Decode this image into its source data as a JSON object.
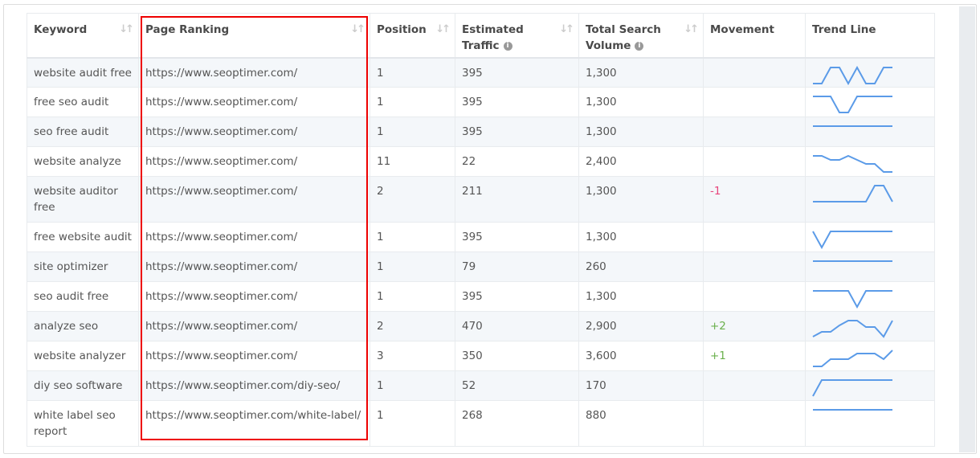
{
  "headers": {
    "keyword": "Keyword",
    "page_ranking": "Page Ranking",
    "position": "Position",
    "traffic": "Estimated Traffic",
    "volume": "Total Search Volume",
    "movement": "Movement",
    "trend": "Trend Line"
  },
  "colors": {
    "trend_line": "#5b9be8",
    "negative": "#e8457c",
    "positive": "#6ab04c",
    "highlight_box": "#e00000"
  },
  "rows": [
    {
      "keyword": "website audit free",
      "url": "https://www.seoptimer.com/",
      "position": "1",
      "traffic": "395",
      "volume": "1,300",
      "movement": "",
      "trend": [
        0,
        0,
        1,
        1,
        0,
        1,
        0,
        0,
        1,
        1
      ]
    },
    {
      "keyword": "free seo audit",
      "url": "https://www.seoptimer.com/",
      "position": "1",
      "traffic": "395",
      "volume": "1,300",
      "movement": "",
      "trend": [
        1,
        1,
        1,
        0,
        0,
        1,
        1,
        1,
        1,
        1
      ]
    },
    {
      "keyword": "seo free audit",
      "url": "https://www.seoptimer.com/",
      "position": "1",
      "traffic": "395",
      "volume": "1,300",
      "movement": "",
      "trend": [
        1,
        1,
        1,
        1,
        1,
        1,
        1,
        1,
        1,
        1
      ]
    },
    {
      "keyword": "website analyze",
      "url": "https://www.seoptimer.com/",
      "position": "11",
      "traffic": "22",
      "volume": "2,400",
      "movement": "",
      "trend": [
        1,
        1,
        0.75,
        0.75,
        1,
        0.75,
        0.5,
        0.5,
        0,
        0
      ]
    },
    {
      "keyword": "website auditor free",
      "url": "https://www.seoptimer.com/",
      "position": "2",
      "traffic": "211",
      "volume": "1,300",
      "movement": "-1",
      "trend": [
        0,
        0,
        0,
        0,
        0,
        0,
        0,
        1,
        1,
        0
      ]
    },
    {
      "keyword": "free website audit",
      "url": "https://www.seoptimer.com/",
      "position": "1",
      "traffic": "395",
      "volume": "1,300",
      "movement": "",
      "trend": [
        1,
        0,
        1,
        1,
        1,
        1,
        1,
        1,
        1,
        1
      ]
    },
    {
      "keyword": "site optimizer",
      "url": "https://www.seoptimer.com/",
      "position": "1",
      "traffic": "79",
      "volume": "260",
      "movement": "",
      "trend": [
        1,
        1,
        1,
        1,
        1,
        1,
        1,
        1,
        1,
        1
      ]
    },
    {
      "keyword": "seo audit free",
      "url": "https://www.seoptimer.com/",
      "position": "1",
      "traffic": "395",
      "volume": "1,300",
      "movement": "",
      "trend": [
        1,
        1,
        1,
        1,
        1,
        0,
        1,
        1,
        1,
        1
      ]
    },
    {
      "keyword": "analyze seo",
      "url": "https://www.seoptimer.com/",
      "position": "2",
      "traffic": "470",
      "volume": "2,900",
      "movement": "+2",
      "trend": [
        0,
        0.3,
        0.3,
        0.7,
        1,
        1,
        0.6,
        0.6,
        0,
        1
      ]
    },
    {
      "keyword": "website analyzer",
      "url": "https://www.seoptimer.com/",
      "position": "3",
      "traffic": "350",
      "volume": "3,600",
      "movement": "+1",
      "trend": [
        0,
        0,
        0.45,
        0.45,
        0.45,
        0.8,
        0.8,
        0.8,
        0.45,
        1
      ]
    },
    {
      "keyword": "diy seo software",
      "url": "https://www.seoptimer.com/diy-seo/",
      "position": "1",
      "traffic": "52",
      "volume": "170",
      "movement": "",
      "trend": [
        0,
        1,
        1,
        1,
        1,
        1,
        1,
        1,
        1,
        1
      ]
    },
    {
      "keyword": "white label seo report",
      "url": "https://www.seoptimer.com/white-label/",
      "position": "1",
      "traffic": "268",
      "volume": "880",
      "movement": "",
      "trend": [
        1,
        1,
        1,
        1,
        1,
        1,
        1,
        1,
        1,
        1
      ]
    }
  ]
}
